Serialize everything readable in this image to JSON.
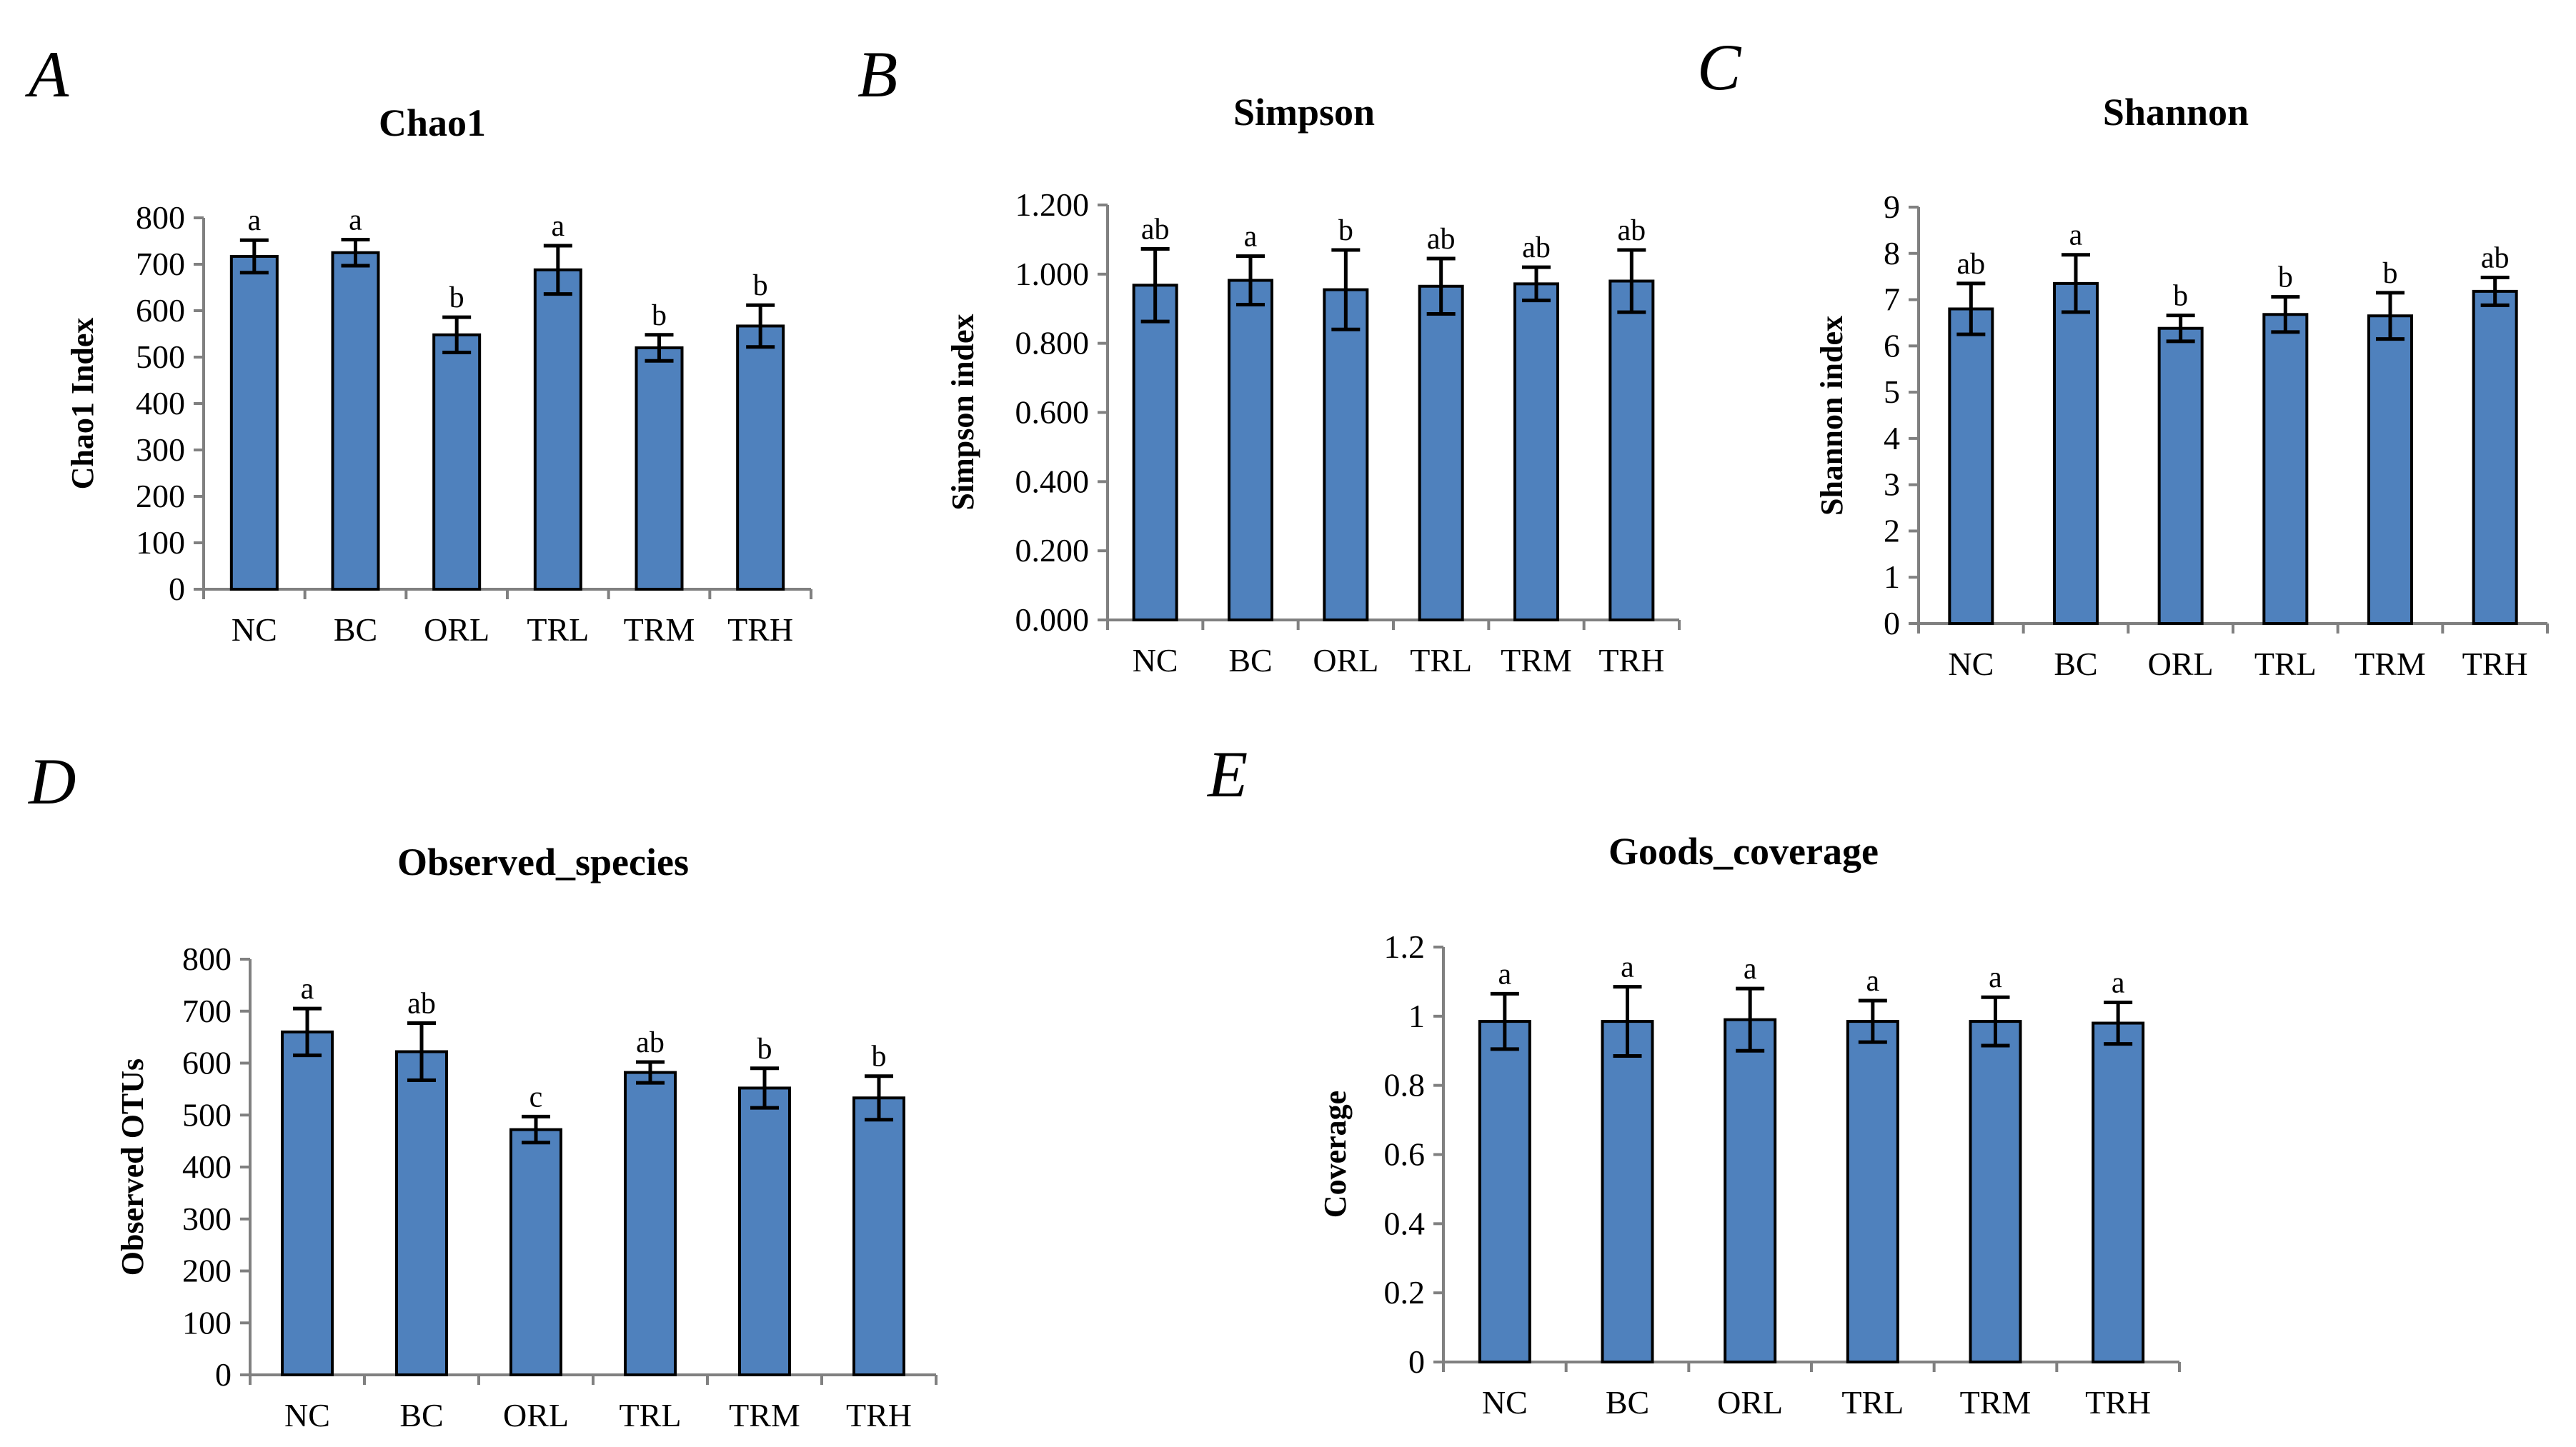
{
  "chart_data": [
    {
      "type": "bar",
      "panel": "A",
      "title": "Chao1",
      "ylabel": "Chao1 Index",
      "xlabel": "",
      "categories": [
        "NC",
        "BC",
        "ORL",
        "TRL",
        "TRM",
        "TRH"
      ],
      "values": [
        717,
        725,
        548,
        688,
        520,
        567
      ],
      "errors": [
        35,
        28,
        38,
        52,
        28,
        45
      ],
      "significance": [
        "a",
        "a",
        "b",
        "a",
        "b",
        "b"
      ],
      "ylim": [
        0,
        800
      ],
      "yticks": [
        0,
        100,
        200,
        300,
        400,
        500,
        600,
        700,
        800
      ],
      "ytick_labels": [
        "0",
        "100",
        "200",
        "300",
        "400",
        "500",
        "600",
        "700",
        "800"
      ]
    },
    {
      "type": "bar",
      "panel": "B",
      "title": "Simpson",
      "ylabel": "Simpson index",
      "xlabel": "",
      "categories": [
        "NC",
        "BC",
        "ORL",
        "TRL",
        "TRM",
        "TRH"
      ],
      "values": [
        0.968,
        0.982,
        0.955,
        0.965,
        0.972,
        0.98
      ],
      "errors": [
        0.105,
        0.07,
        0.115,
        0.08,
        0.048,
        0.09
      ],
      "significance": [
        "ab",
        "a",
        "b",
        "ab",
        "ab",
        "ab"
      ],
      "ylim": [
        0,
        1.2
      ],
      "yticks": [
        0,
        0.2,
        0.4,
        0.6,
        0.8,
        1.0,
        1.2
      ],
      "ytick_labels": [
        "0.000",
        "0.200",
        "0.400",
        "0.600",
        "0.800",
        "1.000",
        "1.200"
      ]
    },
    {
      "type": "bar",
      "panel": "C",
      "title": "Shannon",
      "ylabel": "Shannon index",
      "xlabel": "",
      "categories": [
        "NC",
        "BC",
        "ORL",
        "TRL",
        "TRM",
        "TRH"
      ],
      "values": [
        6.8,
        7.35,
        6.38,
        6.68,
        6.65,
        7.18
      ],
      "errors": [
        0.55,
        0.62,
        0.28,
        0.38,
        0.5,
        0.3
      ],
      "significance": [
        "ab",
        "a",
        "b",
        "b",
        "b",
        "ab"
      ],
      "ylim": [
        0,
        9
      ],
      "yticks": [
        0,
        1,
        2,
        3,
        4,
        5,
        6,
        7,
        8,
        9
      ],
      "ytick_labels": [
        "0",
        "1",
        "2",
        "3",
        "4",
        "5",
        "6",
        "7",
        "8",
        "9"
      ]
    },
    {
      "type": "bar",
      "panel": "D",
      "title": "Observed_species",
      "ylabel": "Observed OTUs",
      "xlabel": "",
      "categories": [
        "NC",
        "BC",
        "ORL",
        "TRL",
        "TRM",
        "TRH"
      ],
      "values": [
        660,
        622,
        472,
        582,
        552,
        533
      ],
      "errors": [
        45,
        55,
        25,
        20,
        38,
        42
      ],
      "significance": [
        "a",
        "ab",
        "c",
        "ab",
        "b",
        "b"
      ],
      "ylim": [
        0,
        800
      ],
      "yticks": [
        0,
        100,
        200,
        300,
        400,
        500,
        600,
        700,
        800
      ],
      "ytick_labels": [
        "0",
        "100",
        "200",
        "300",
        "400",
        "500",
        "600",
        "700",
        "800"
      ]
    },
    {
      "type": "bar",
      "panel": "E",
      "title": "Goods_coverage",
      "ylabel": "Coverage",
      "xlabel": "",
      "categories": [
        "NC",
        "BC",
        "ORL",
        "TRL",
        "TRM",
        "TRH"
      ],
      "values": [
        0.985,
        0.985,
        0.99,
        0.985,
        0.985,
        0.98
      ],
      "errors": [
        0.08,
        0.1,
        0.09,
        0.06,
        0.07,
        0.06
      ],
      "significance": [
        "a",
        "a",
        "a",
        "a",
        "a",
        "a"
      ],
      "ylim": [
        0,
        1.2
      ],
      "yticks": [
        0,
        0.2,
        0.4,
        0.6,
        0.8,
        1.0,
        1.2
      ],
      "ytick_labels": [
        "0",
        "0.2",
        "0.4",
        "0.6",
        "0.8",
        "1",
        "1.2"
      ]
    }
  ]
}
